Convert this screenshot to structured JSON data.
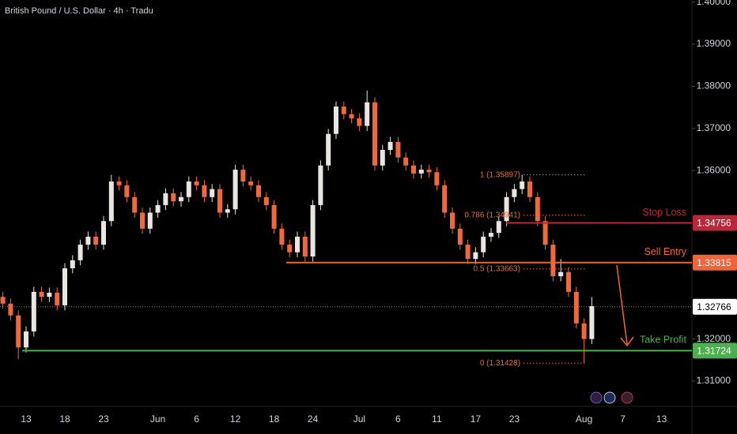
{
  "chart_data": {
    "type": "candlestick",
    "title": "British Pound / U.S. Dollar · 4h · Tradu",
    "categories": [
      null,
      null,
      null,
      "13",
      null,
      null,
      null,
      null,
      "18",
      null,
      null,
      null,
      null,
      "23",
      null,
      null,
      null,
      null,
      null,
      null,
      "Jun",
      null,
      null,
      null,
      null,
      "6",
      null,
      null,
      null,
      null,
      "12",
      null,
      null,
      null,
      null,
      "18",
      null,
      null,
      null,
      null,
      "24",
      null,
      null,
      null,
      null,
      null,
      "Jul",
      null,
      null,
      null,
      null,
      "6",
      null,
      null,
      null,
      null,
      "11",
      null,
      null,
      null,
      null,
      "17",
      null,
      null,
      null,
      null,
      "23",
      null,
      null,
      null,
      null,
      null,
      null,
      null,
      null,
      "Aug",
      null,
      null,
      null,
      null,
      "7",
      null,
      null,
      null,
      null,
      "13"
    ],
    "open": [
      1.33,
      1.3284,
      1.3256,
      1.318,
      1.3218,
      1.3312,
      1.33,
      1.331,
      1.328,
      1.3368,
      1.3387,
      1.3424,
      1.3443,
      1.3424,
      1.348,
      1.3574,
      1.3565,
      1.3537,
      1.35,
      1.3462,
      1.35,
      1.3518,
      1.3546,
      1.3527,
      1.3537,
      1.3574,
      1.3565,
      1.3537,
      1.3556,
      1.35,
      1.3508,
      1.3602,
      1.3574,
      1.3565,
      1.3537,
      1.3518,
      1.3462,
      1.3424,
      1.3406,
      1.3443,
      1.3396,
      1.3518,
      1.3612,
      1.3687,
      1.3752,
      1.3734,
      1.3724,
      1.3706,
      1.3762,
      1.3612,
      1.3649,
      1.3668,
      1.3631,
      1.3612,
      1.3593,
      1.3602,
      1.3596,
      1.3565,
      1.35,
      1.3462,
      1.3424,
      1.339,
      1.3406,
      1.3443,
      1.3452,
      1.348,
      1.3537,
      1.3556,
      1.3574,
      1.3537,
      1.348,
      1.3424,
      1.3349,
      1.3359,
      1.3312,
      1.3237,
      1.32,
      null,
      null,
      null,
      null,
      null,
      null,
      null,
      null,
      null
    ],
    "high": [
      1.3312,
      1.3296,
      1.3268,
      1.323,
      1.3324,
      1.3324,
      1.3322,
      1.3322,
      1.338,
      1.3399,
      1.3436,
      1.3455,
      1.3455,
      1.3492,
      1.359,
      1.3586,
      1.3577,
      1.3549,
      1.3512,
      1.3512,
      1.353,
      1.3558,
      1.3558,
      1.3549,
      1.3586,
      1.3586,
      1.3577,
      1.3568,
      1.3568,
      1.352,
      1.3614,
      1.3614,
      1.3586,
      1.3577,
      1.3549,
      1.353,
      1.3474,
      1.3436,
      1.3455,
      1.3455,
      1.353,
      1.3624,
      1.3699,
      1.3764,
      1.3764,
      1.3746,
      1.3736,
      1.379,
      1.3774,
      1.3661,
      1.368,
      1.368,
      1.3643,
      1.3624,
      1.3614,
      1.3614,
      1.3608,
      1.3577,
      1.3512,
      1.3474,
      1.3436,
      1.3418,
      1.3455,
      1.3464,
      1.3492,
      1.3549,
      1.3568,
      1.359,
      1.3586,
      1.3549,
      1.3492,
      1.3436,
      1.339,
      1.3371,
      1.3324,
      1.3249,
      1.33,
      null,
      null,
      null,
      null,
      null,
      null,
      null,
      null,
      null
    ],
    "low": [
      1.3272,
      1.3244,
      1.3152,
      1.3168,
      1.3206,
      1.3288,
      1.3288,
      1.3268,
      1.3268,
      1.3356,
      1.3375,
      1.3412,
      1.3412,
      1.3412,
      1.3468,
      1.3553,
      1.3525,
      1.3488,
      1.345,
      1.345,
      1.3488,
      1.3506,
      1.3515,
      1.3515,
      1.3525,
      1.3553,
      1.3525,
      1.3525,
      1.3488,
      1.3488,
      1.3496,
      1.3562,
      1.3553,
      1.3525,
      1.3506,
      1.345,
      1.3412,
      1.3394,
      1.3394,
      1.3384,
      1.3384,
      1.3506,
      1.36,
      1.3675,
      1.3722,
      1.3712,
      1.3694,
      1.3694,
      1.36,
      1.36,
      1.3637,
      1.3619,
      1.36,
      1.3581,
      1.3581,
      1.3584,
      1.3553,
      1.3488,
      1.345,
      1.3412,
      1.3378,
      1.3378,
      1.3394,
      1.3431,
      1.344,
      1.3468,
      1.3525,
      1.3544,
      1.3525,
      1.3468,
      1.3412,
      1.3337,
      1.3337,
      1.33,
      1.3225,
      1.3143,
      1.3188,
      null,
      null,
      null,
      null,
      null,
      null,
      null,
      null,
      null
    ],
    "close": [
      1.3284,
      1.3256,
      1.318,
      1.3218,
      1.3312,
      1.33,
      1.331,
      1.328,
      1.3368,
      1.3387,
      1.3424,
      1.3443,
      1.3424,
      1.348,
      1.3574,
      1.3565,
      1.3537,
      1.35,
      1.3462,
      1.35,
      1.3518,
      1.3546,
      1.3527,
      1.3537,
      1.3574,
      1.3565,
      1.3537,
      1.3556,
      1.35,
      1.3508,
      1.3602,
      1.3574,
      1.3565,
      1.3537,
      1.3518,
      1.3462,
      1.3424,
      1.3406,
      1.3443,
      1.3396,
      1.3518,
      1.3612,
      1.3687,
      1.3752,
      1.3734,
      1.3724,
      1.3706,
      1.3762,
      1.3612,
      1.3649,
      1.3668,
      1.3631,
      1.3612,
      1.3593,
      1.3602,
      1.3596,
      1.3565,
      1.35,
      1.3462,
      1.3424,
      1.339,
      1.3406,
      1.3443,
      1.3452,
      1.348,
      1.3537,
      1.3556,
      1.3574,
      1.3537,
      1.348,
      1.3424,
      1.3349,
      1.3359,
      1.3312,
      1.3237,
      1.32,
      1.3278,
      null,
      null,
      null,
      null,
      null,
      null,
      null,
      null,
      null
    ],
    "up_color": "#e9e6e2",
    "down_color": "#f0683c",
    "ylim": [
      1.304,
      1.4005
    ],
    "yticks": [
      {
        "value": 1.4,
        "label": "1.40000"
      },
      {
        "value": 1.39,
        "label": "1.39000"
      },
      {
        "value": 1.38,
        "label": "1.38000"
      },
      {
        "value": 1.37,
        "label": "1.37000"
      },
      {
        "value": 1.36,
        "label": "1.36000"
      },
      {
        "value": 1.32,
        "label": "1.32000"
      },
      {
        "value": 1.31,
        "label": "1.31000"
      }
    ],
    "levels": [
      {
        "name": "Stop Loss",
        "value": 1.34756,
        "value_label": "1.34756",
        "color": "#b8283a"
      },
      {
        "name": "Sell Entry",
        "value": 1.33815,
        "value_label": "1.33815",
        "color": "#f0643c"
      },
      {
        "name": "Take Profit",
        "value": 1.31724,
        "value_label": "1.31724",
        "color": "#4caf50"
      }
    ],
    "fib_levels": [
      {
        "label": "1 (1.35897)",
        "value": 1.35897
      },
      {
        "label": "0.786 (1.34941)",
        "value": 1.34941
      },
      {
        "label": "0.5 (1.33663)",
        "value": 1.33663
      },
      {
        "label": "0 (1.31428)",
        "value": 1.31428
      }
    ],
    "last_price": {
      "value": 1.32766,
      "label": "1.32766"
    }
  }
}
